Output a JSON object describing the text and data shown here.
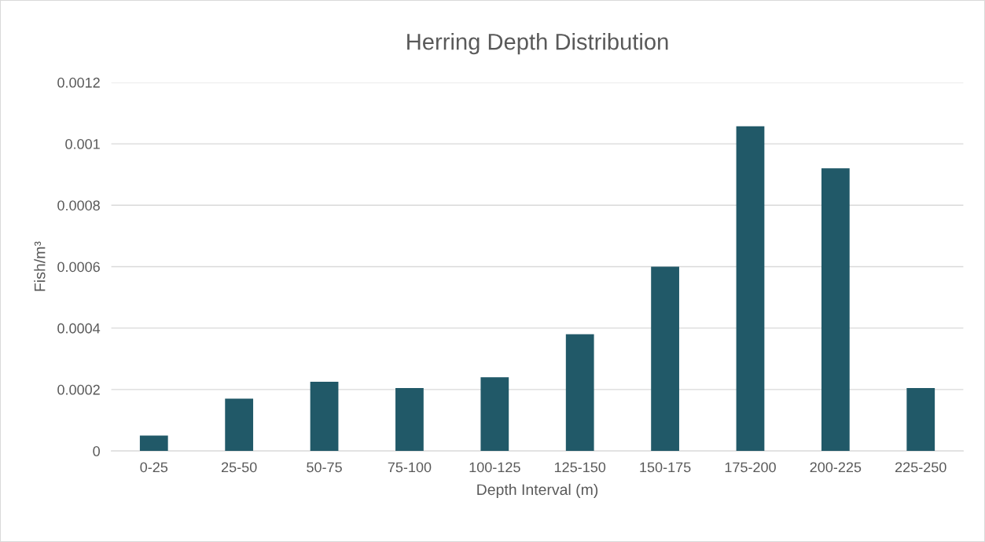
{
  "chart_data": {
    "type": "bar",
    "title": "Herring Depth Distribution",
    "xlabel": "Depth Interval (m)",
    "ylabel": "Fish/m³",
    "categories": [
      "0-25",
      "25-50",
      "50-75",
      "75-100",
      "100-125",
      "125-150",
      "150-175",
      "175-200",
      "200-225",
      "225-250"
    ],
    "values": [
      5e-05,
      0.00017,
      0.000225,
      0.000205,
      0.00024,
      0.00038,
      0.0006,
      0.001057,
      0.00092,
      0.000205
    ],
    "color": "#215968",
    "ylim": [
      0,
      0.0012
    ],
    "yticks": [
      0,
      0.0002,
      0.0004,
      0.0006,
      0.0008,
      0.001,
      0.0012
    ],
    "grid": "y",
    "legend": false
  }
}
